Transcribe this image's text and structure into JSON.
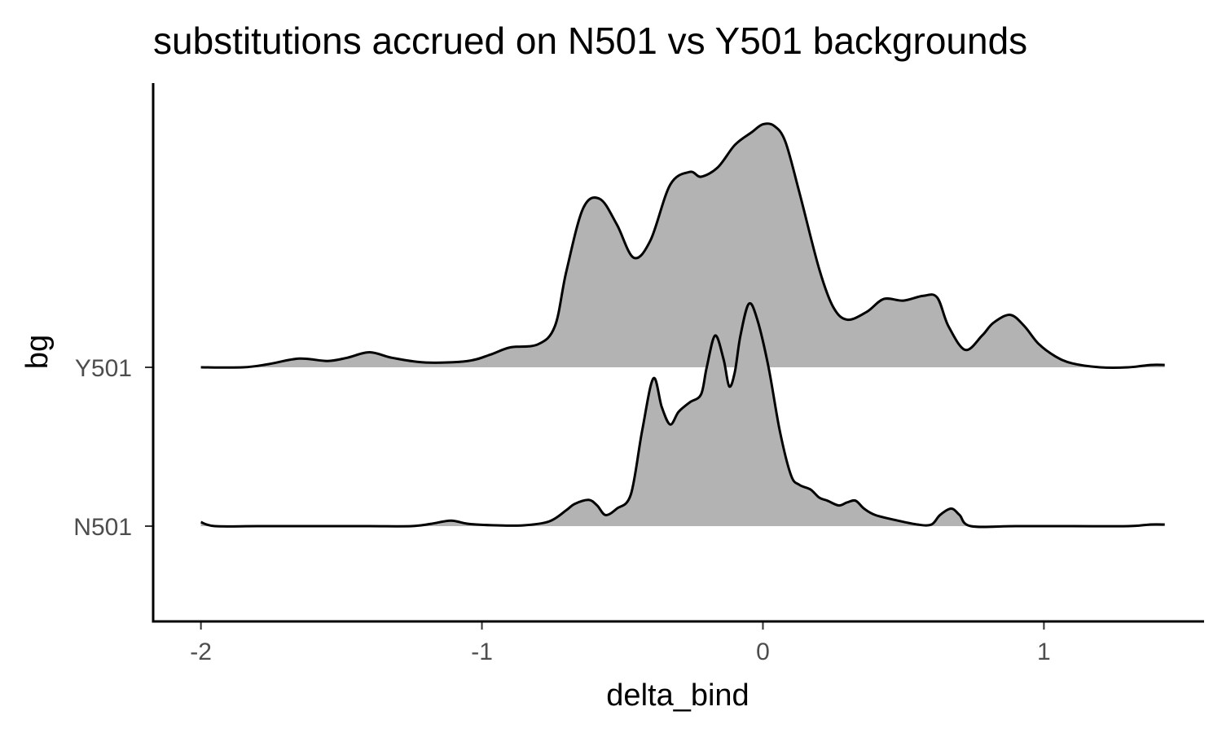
{
  "chart_data": {
    "type": "area",
    "title": "substitutions accrued on N501 vs Y501 backgrounds",
    "xlabel": "delta_bind",
    "ylabel": "bg",
    "categories": [
      "N501",
      "Y501"
    ],
    "xlim": [
      -2.17,
      1.57
    ],
    "x_ticks": [
      -2,
      -1,
      0,
      1
    ],
    "x_tick_labels": [
      "-2",
      "-1",
      "0",
      "1"
    ],
    "grid": false,
    "legend": "none",
    "fill_color": "#b3b3b3",
    "line_color": "#000000",
    "series": [
      {
        "category": "N501",
        "ridge_height": 0.72,
        "points": [
          [
            -2.0,
            0.025
          ],
          [
            -1.95,
            0.0
          ],
          [
            -1.8,
            0.0
          ],
          [
            -1.6,
            0.0
          ],
          [
            -1.4,
            0.0
          ],
          [
            -1.25,
            0.0
          ],
          [
            -1.18,
            0.015
          ],
          [
            -1.11,
            0.035
          ],
          [
            -1.05,
            0.015
          ],
          [
            -0.95,
            0.005
          ],
          [
            -0.85,
            0.005
          ],
          [
            -0.76,
            0.03
          ],
          [
            -0.7,
            0.1
          ],
          [
            -0.67,
            0.14
          ],
          [
            -0.62,
            0.165
          ],
          [
            -0.59,
            0.13
          ],
          [
            -0.56,
            0.07
          ],
          [
            -0.52,
            0.11
          ],
          [
            -0.47,
            0.2
          ],
          [
            -0.43,
            0.6
          ],
          [
            -0.39,
            0.93
          ],
          [
            -0.36,
            0.75
          ],
          [
            -0.33,
            0.64
          ],
          [
            -0.3,
            0.72
          ],
          [
            -0.26,
            0.78
          ],
          [
            -0.22,
            0.83
          ],
          [
            -0.2,
            1.0
          ],
          [
            -0.17,
            1.2
          ],
          [
            -0.14,
            1.05
          ],
          [
            -0.12,
            0.88
          ],
          [
            -0.1,
            0.97
          ],
          [
            -0.08,
            1.2
          ],
          [
            -0.05,
            1.4
          ],
          [
            -0.02,
            1.3
          ],
          [
            0.02,
            1.0
          ],
          [
            0.06,
            0.6
          ],
          [
            0.1,
            0.32
          ],
          [
            0.13,
            0.26
          ],
          [
            0.17,
            0.23
          ],
          [
            0.2,
            0.18
          ],
          [
            0.23,
            0.16
          ],
          [
            0.27,
            0.13
          ],
          [
            0.3,
            0.15
          ],
          [
            0.33,
            0.16
          ],
          [
            0.36,
            0.11
          ],
          [
            0.4,
            0.07
          ],
          [
            0.48,
            0.035
          ],
          [
            0.55,
            0.01
          ],
          [
            0.6,
            0.01
          ],
          [
            0.63,
            0.07
          ],
          [
            0.67,
            0.11
          ],
          [
            0.7,
            0.07
          ],
          [
            0.74,
            0.0
          ],
          [
            0.9,
            0.0
          ],
          [
            1.1,
            0.0
          ],
          [
            1.3,
            0.0
          ],
          [
            1.38,
            0.01
          ],
          [
            1.43,
            0.01
          ]
        ]
      },
      {
        "category": "Y501",
        "ridge_height": 0.72,
        "points": [
          [
            -2.0,
            0.0
          ],
          [
            -1.85,
            0.0
          ],
          [
            -1.76,
            0.02
          ],
          [
            -1.65,
            0.055
          ],
          [
            -1.55,
            0.04
          ],
          [
            -1.48,
            0.06
          ],
          [
            -1.4,
            0.095
          ],
          [
            -1.32,
            0.06
          ],
          [
            -1.2,
            0.03
          ],
          [
            -1.05,
            0.04
          ],
          [
            -0.97,
            0.08
          ],
          [
            -0.9,
            0.125
          ],
          [
            -0.8,
            0.145
          ],
          [
            -0.74,
            0.26
          ],
          [
            -0.7,
            0.6
          ],
          [
            -0.64,
            1.0
          ],
          [
            -0.58,
            1.06
          ],
          [
            -0.52,
            0.9
          ],
          [
            -0.46,
            0.69
          ],
          [
            -0.4,
            0.8
          ],
          [
            -0.33,
            1.15
          ],
          [
            -0.26,
            1.23
          ],
          [
            -0.22,
            1.2
          ],
          [
            -0.16,
            1.26
          ],
          [
            -0.1,
            1.4
          ],
          [
            -0.04,
            1.48
          ],
          [
            0.0,
            1.53
          ],
          [
            0.04,
            1.52
          ],
          [
            0.08,
            1.42
          ],
          [
            0.13,
            1.1
          ],
          [
            0.2,
            0.62
          ],
          [
            0.25,
            0.38
          ],
          [
            0.3,
            0.3
          ],
          [
            0.37,
            0.35
          ],
          [
            0.43,
            0.43
          ],
          [
            0.5,
            0.42
          ],
          [
            0.57,
            0.45
          ],
          [
            0.62,
            0.44
          ],
          [
            0.66,
            0.26
          ],
          [
            0.72,
            0.11
          ],
          [
            0.78,
            0.2
          ],
          [
            0.82,
            0.28
          ],
          [
            0.88,
            0.33
          ],
          [
            0.93,
            0.26
          ],
          [
            0.98,
            0.15
          ],
          [
            1.04,
            0.07
          ],
          [
            1.1,
            0.025
          ],
          [
            1.2,
            0.0
          ],
          [
            1.3,
            0.0
          ],
          [
            1.38,
            0.015
          ],
          [
            1.43,
            0.015
          ]
        ]
      }
    ]
  }
}
